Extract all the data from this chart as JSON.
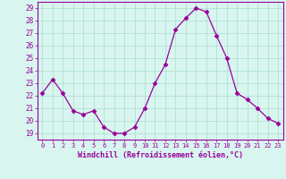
{
  "x": [
    0,
    1,
    2,
    3,
    4,
    5,
    6,
    7,
    8,
    9,
    10,
    11,
    12,
    13,
    14,
    15,
    16,
    17,
    18,
    19,
    20,
    21,
    22,
    23
  ],
  "y": [
    22.2,
    23.3,
    22.2,
    20.8,
    20.5,
    20.8,
    19.5,
    19.0,
    19.0,
    19.5,
    21.0,
    23.0,
    24.5,
    27.3,
    28.2,
    29.0,
    28.7,
    26.8,
    25.0,
    22.2,
    21.7,
    21.0,
    20.2,
    19.8
  ],
  "line_color": "#990099",
  "marker": "D",
  "marker_size": 2.5,
  "bg_color": "#d8f5f0",
  "grid_color": "#aaddcc",
  "xlabel": "Windchill (Refroidissement éolien,°C)",
  "xlabel_color": "#990099",
  "ylabel_ticks": [
    19,
    20,
    21,
    22,
    23,
    24,
    25,
    26,
    27,
    28,
    29
  ],
  "xtick_labels": [
    "0",
    "1",
    "2",
    "3",
    "4",
    "5",
    "6",
    "7",
    "8",
    "9",
    "10",
    "11",
    "12",
    "13",
    "14",
    "15",
    "16",
    "17",
    "18",
    "19",
    "20",
    "21",
    "22",
    "23"
  ],
  "ylim": [
    18.5,
    29.5
  ],
  "xlim": [
    -0.5,
    23.5
  ],
  "tick_color": "#990099",
  "spine_color": "#990099"
}
